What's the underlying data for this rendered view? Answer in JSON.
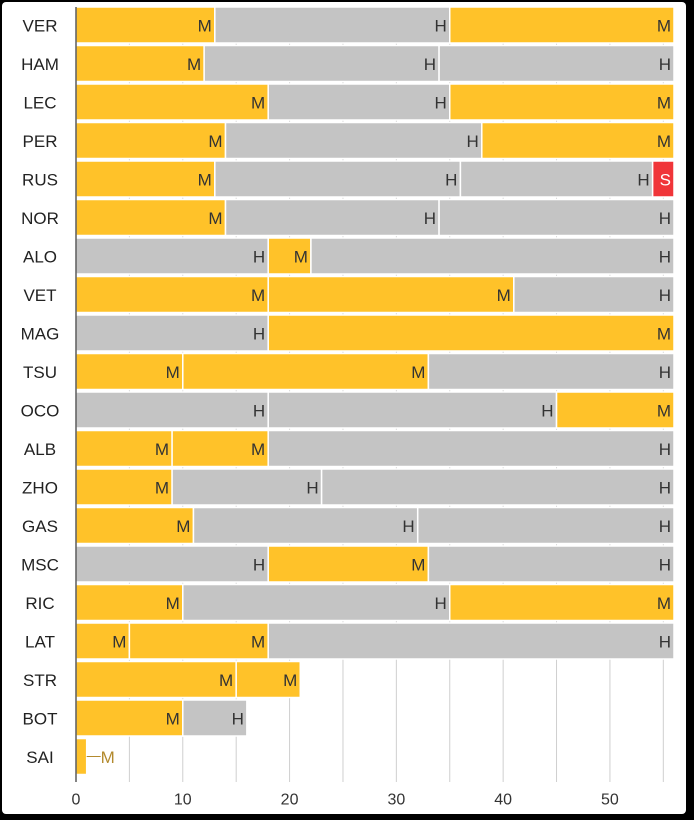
{
  "chart_data": {
    "type": "bar",
    "orientation": "horizontal",
    "stacked": true,
    "title": "",
    "xlabel": "",
    "ylabel": "",
    "xlim": [
      0,
      56
    ],
    "x_ticks": [
      0,
      10,
      20,
      30,
      40,
      50
    ],
    "grid": "vertical",
    "legend": "none",
    "compound_colors": {
      "M": "#FFC229",
      "H": "#C4C4C4",
      "S": "#F03539"
    },
    "background": "#ffffff",
    "rows": [
      {
        "driver": "VER",
        "stints": [
          {
            "compound": "M",
            "laps": 13
          },
          {
            "compound": "H",
            "laps": 22
          },
          {
            "compound": "M",
            "laps": 21
          }
        ]
      },
      {
        "driver": "HAM",
        "stints": [
          {
            "compound": "M",
            "laps": 12
          },
          {
            "compound": "H",
            "laps": 22
          },
          {
            "compound": "H",
            "laps": 22
          }
        ]
      },
      {
        "driver": "LEC",
        "stints": [
          {
            "compound": "M",
            "laps": 18
          },
          {
            "compound": "H",
            "laps": 17
          },
          {
            "compound": "M",
            "laps": 21
          }
        ]
      },
      {
        "driver": "PER",
        "stints": [
          {
            "compound": "M",
            "laps": 14
          },
          {
            "compound": "H",
            "laps": 24
          },
          {
            "compound": "M",
            "laps": 18
          }
        ]
      },
      {
        "driver": "RUS",
        "stints": [
          {
            "compound": "M",
            "laps": 13
          },
          {
            "compound": "H",
            "laps": 23
          },
          {
            "compound": "H",
            "laps": 18
          },
          {
            "compound": "S",
            "laps": 2
          }
        ]
      },
      {
        "driver": "NOR",
        "stints": [
          {
            "compound": "M",
            "laps": 14
          },
          {
            "compound": "H",
            "laps": 20
          },
          {
            "compound": "H",
            "laps": 22
          }
        ]
      },
      {
        "driver": "ALO",
        "stints": [
          {
            "compound": "H",
            "laps": 18
          },
          {
            "compound": "M",
            "laps": 4
          },
          {
            "compound": "H",
            "laps": 34
          }
        ]
      },
      {
        "driver": "VET",
        "stints": [
          {
            "compound": "M",
            "laps": 18
          },
          {
            "compound": "M",
            "laps": 23
          },
          {
            "compound": "H",
            "laps": 15
          }
        ]
      },
      {
        "driver": "MAG",
        "stints": [
          {
            "compound": "H",
            "laps": 18
          },
          {
            "compound": "M",
            "laps": 38
          }
        ]
      },
      {
        "driver": "TSU",
        "stints": [
          {
            "compound": "M",
            "laps": 10
          },
          {
            "compound": "M",
            "laps": 23
          },
          {
            "compound": "H",
            "laps": 23
          }
        ]
      },
      {
        "driver": "OCO",
        "stints": [
          {
            "compound": "H",
            "laps": 18
          },
          {
            "compound": "H",
            "laps": 27
          },
          {
            "compound": "M",
            "laps": 11
          }
        ]
      },
      {
        "driver": "ALB",
        "stints": [
          {
            "compound": "M",
            "laps": 9
          },
          {
            "compound": "M",
            "laps": 9
          },
          {
            "compound": "H",
            "laps": 38
          }
        ]
      },
      {
        "driver": "ZHO",
        "stints": [
          {
            "compound": "M",
            "laps": 9
          },
          {
            "compound": "H",
            "laps": 14
          },
          {
            "compound": "H",
            "laps": 33
          }
        ]
      },
      {
        "driver": "GAS",
        "stints": [
          {
            "compound": "M",
            "laps": 11
          },
          {
            "compound": "H",
            "laps": 21
          },
          {
            "compound": "H",
            "laps": 24
          }
        ]
      },
      {
        "driver": "MSC",
        "stints": [
          {
            "compound": "H",
            "laps": 18
          },
          {
            "compound": "M",
            "laps": 15
          },
          {
            "compound": "H",
            "laps": 23
          }
        ]
      },
      {
        "driver": "RIC",
        "stints": [
          {
            "compound": "M",
            "laps": 10
          },
          {
            "compound": "H",
            "laps": 25
          },
          {
            "compound": "M",
            "laps": 21
          }
        ]
      },
      {
        "driver": "LAT",
        "stints": [
          {
            "compound": "M",
            "laps": 5
          },
          {
            "compound": "M",
            "laps": 13
          },
          {
            "compound": "H",
            "laps": 38
          }
        ]
      },
      {
        "driver": "STR",
        "stints": [
          {
            "compound": "M",
            "laps": 15
          },
          {
            "compound": "M",
            "laps": 6
          }
        ]
      },
      {
        "driver": "BOT",
        "stints": [
          {
            "compound": "M",
            "laps": 10
          },
          {
            "compound": "H",
            "laps": 6
          }
        ]
      },
      {
        "driver": "SAI",
        "stints": [
          {
            "compound": "M",
            "laps": 1
          }
        ]
      }
    ]
  }
}
